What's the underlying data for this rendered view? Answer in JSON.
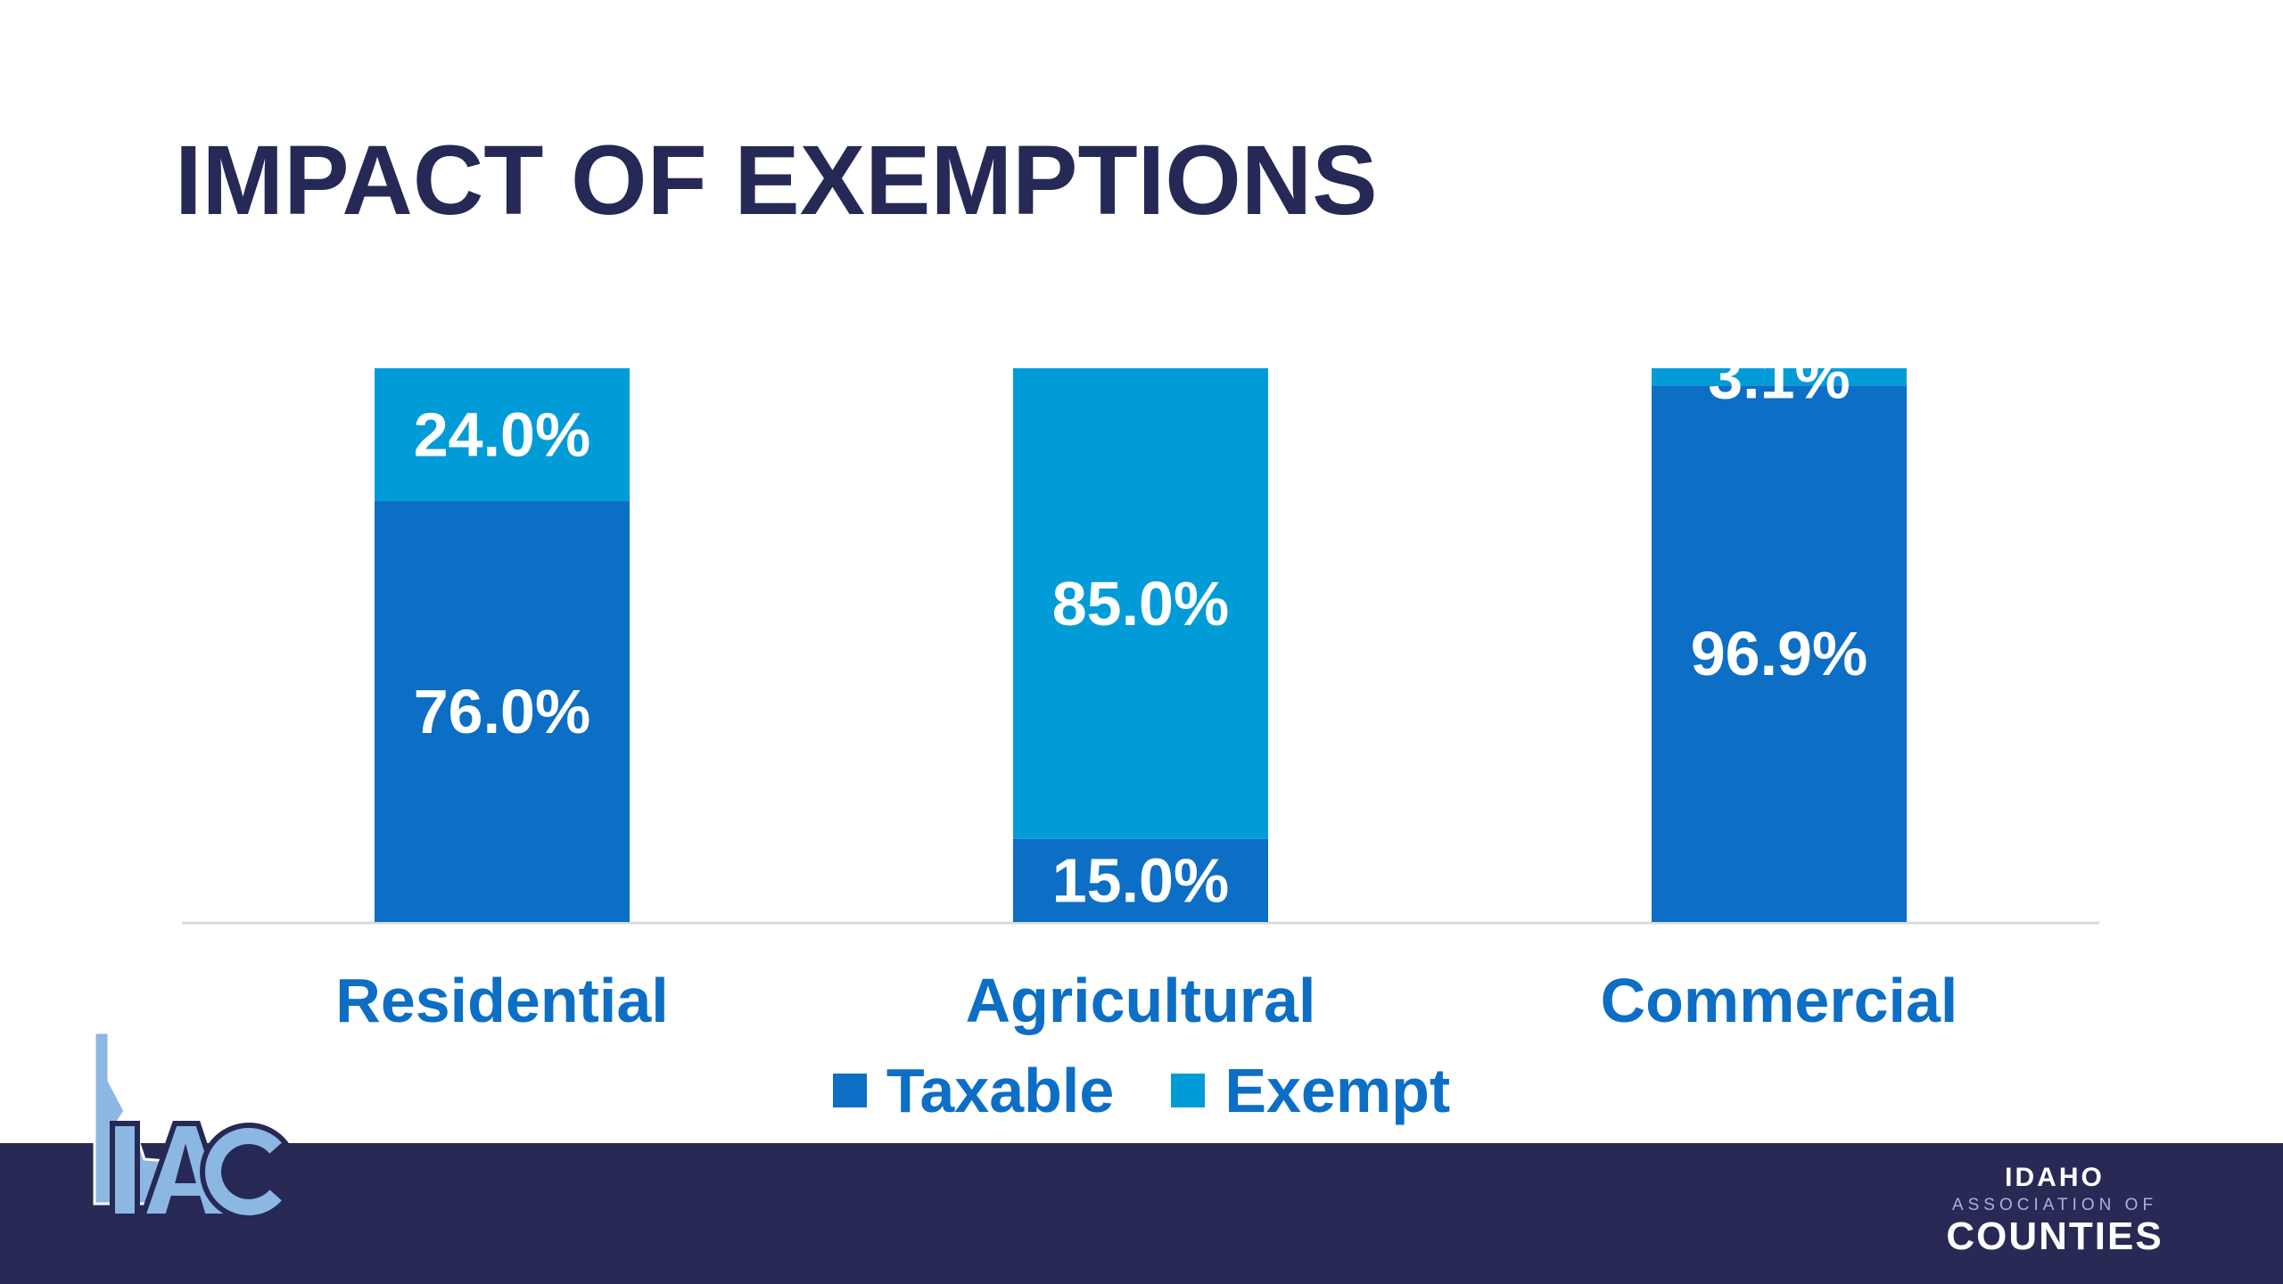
{
  "slide": {
    "title": "IMPACT OF EXEMPTIONS"
  },
  "colors": {
    "title": "#262856",
    "taxable": "#0d6ec5",
    "exempt": "#019cd8",
    "category_label": "#0d6ec5",
    "footer": "#282a55",
    "axis": "#d9d9d9"
  },
  "chart_data": {
    "type": "bar",
    "stacked": true,
    "categories": [
      "Residential",
      "Agricultural",
      "Commercial"
    ],
    "series": [
      {
        "name": "Taxable",
        "values": [
          76.0,
          15.0,
          96.9
        ],
        "labels": [
          "76.0%",
          "15.0%",
          "96.9%"
        ]
      },
      {
        "name": "Exempt",
        "values": [
          24.0,
          85.0,
          3.1
        ],
        "labels": [
          "24.0%",
          "85.0%",
          "3.1%"
        ]
      }
    ],
    "ylim": [
      0,
      100
    ],
    "grid": false,
    "legend_position": "bottom"
  },
  "legend": {
    "taxable": "Taxable",
    "exempt": "Exempt"
  },
  "logos": {
    "left": {
      "icon": "idaho-state-outline-icon",
      "text": "IAC"
    },
    "right": {
      "line1": "IDAHO",
      "line2": "ASSOCIATION OF",
      "line3": "COUNTIES"
    }
  }
}
